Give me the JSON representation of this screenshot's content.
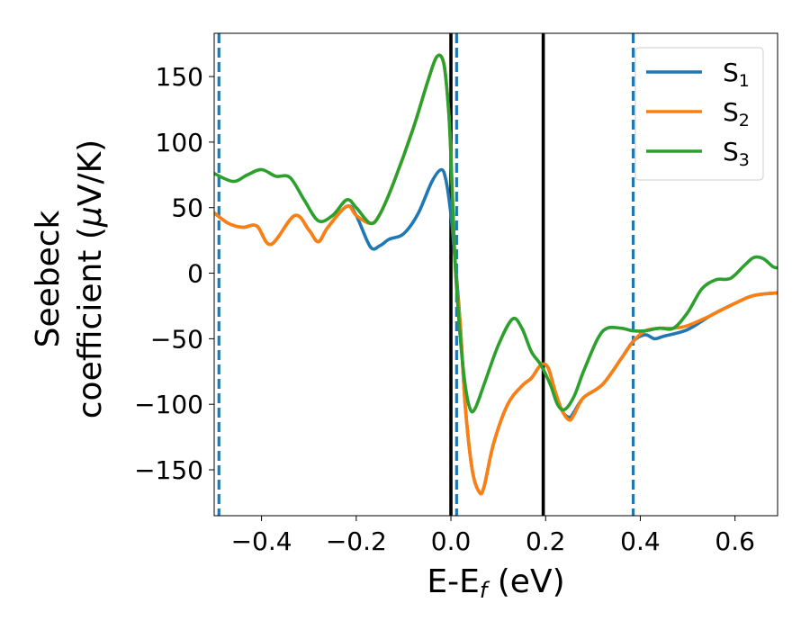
{
  "chart_data": {
    "type": "line",
    "title": "",
    "xlabel": "E-E",
    "xlabel_sub": "f",
    "xlabel_unit": " (eV)",
    "ylabel_line1": "Seebeck",
    "ylabel_line2_pre": "coefficient  (",
    "ylabel_mu": "μ",
    "ylabel_line2_post": "V/K)",
    "xlim": [
      -0.5,
      0.69
    ],
    "ylim": [
      -185,
      183
    ],
    "x_ticks": [
      -0.4,
      -0.2,
      0.0,
      0.2,
      0.4,
      0.6
    ],
    "x_tick_labels": [
      "−0.4",
      "−0.2",
      "0.0",
      "0.2",
      "0.4",
      "0.6"
    ],
    "y_ticks": [
      150,
      100,
      50,
      0,
      -50,
      -100,
      -150
    ],
    "y_tick_labels": [
      "150",
      "100",
      "50",
      "0",
      "−50",
      "−100",
      "−150"
    ],
    "grid": false,
    "legend_position": "top-right",
    "vertical_lines": [
      {
        "x": -0.49,
        "style": "dashed",
        "color": "#1f77b4"
      },
      {
        "x": 0.0,
        "style": "solid",
        "color": "#000000"
      },
      {
        "x": 0.012,
        "style": "dashed",
        "color": "#1f77b4"
      },
      {
        "x": 0.195,
        "style": "solid",
        "color": "#000000"
      },
      {
        "x": 0.385,
        "style": "dashed",
        "color": "#1f77b4"
      }
    ],
    "series": [
      {
        "name": "S",
        "sub": "1",
        "color": "#1f77b4",
        "points": [
          [
            -0.5,
            46
          ],
          [
            -0.47,
            38
          ],
          [
            -0.44,
            35
          ],
          [
            -0.41,
            36
          ],
          [
            -0.38,
            22
          ],
          [
            -0.33,
            44
          ],
          [
            -0.3,
            33
          ],
          [
            -0.28,
            24
          ],
          [
            -0.26,
            35
          ],
          [
            -0.22,
            51
          ],
          [
            -0.2,
            44
          ],
          [
            -0.17,
            20
          ],
          [
            -0.15,
            21
          ],
          [
            -0.13,
            26
          ],
          [
            -0.1,
            30
          ],
          [
            -0.07,
            45
          ],
          [
            -0.04,
            70
          ],
          [
            -0.02,
            79
          ],
          [
            -0.01,
            70
          ],
          [
            0.0,
            45
          ],
          [
            0.005,
            25
          ],
          [
            0.01,
            5
          ],
          [
            0.02,
            -40
          ],
          [
            0.03,
            -100
          ],
          [
            0.045,
            -150
          ],
          [
            0.06,
            -167
          ],
          [
            0.07,
            -163
          ],
          [
            0.09,
            -130
          ],
          [
            0.12,
            -100
          ],
          [
            0.15,
            -86
          ],
          [
            0.17,
            -80
          ],
          [
            0.19,
            -70
          ],
          [
            0.205,
            -72
          ],
          [
            0.22,
            -90
          ],
          [
            0.235,
            -105
          ],
          [
            0.25,
            -110
          ],
          [
            0.26,
            -106
          ],
          [
            0.28,
            -95
          ],
          [
            0.32,
            -85
          ],
          [
            0.36,
            -65
          ],
          [
            0.385,
            -52
          ],
          [
            0.41,
            -47
          ],
          [
            0.43,
            -50
          ],
          [
            0.45,
            -48
          ],
          [
            0.5,
            -43
          ],
          [
            0.55,
            -32
          ],
          [
            0.6,
            -23
          ],
          [
            0.64,
            -17
          ],
          [
            0.69,
            -15
          ]
        ]
      },
      {
        "name": "S",
        "sub": "2",
        "color": "#ff7f0e",
        "points": [
          [
            -0.5,
            46
          ],
          [
            -0.47,
            38
          ],
          [
            -0.44,
            35
          ],
          [
            -0.41,
            36
          ],
          [
            -0.38,
            22
          ],
          [
            -0.33,
            44
          ],
          [
            -0.3,
            33
          ],
          [
            -0.28,
            24
          ],
          [
            -0.26,
            35
          ],
          [
            -0.22,
            51
          ],
          [
            -0.2,
            44
          ],
          [
            -0.17,
            38
          ],
          [
            -0.15,
            45
          ],
          [
            -0.12,
            70
          ],
          [
            -0.08,
            110
          ],
          [
            -0.05,
            145
          ],
          [
            -0.03,
            165
          ],
          [
            -0.015,
            160
          ],
          [
            -0.005,
            125
          ],
          [
            0.0,
            90
          ],
          [
            0.005,
            40
          ],
          [
            0.01,
            0
          ],
          [
            0.02,
            -40
          ],
          [
            0.03,
            -100
          ],
          [
            0.045,
            -150
          ],
          [
            0.06,
            -167
          ],
          [
            0.07,
            -163
          ],
          [
            0.09,
            -130
          ],
          [
            0.12,
            -100
          ],
          [
            0.15,
            -86
          ],
          [
            0.17,
            -80
          ],
          [
            0.19,
            -70
          ],
          [
            0.205,
            -72
          ],
          [
            0.22,
            -90
          ],
          [
            0.235,
            -105
          ],
          [
            0.25,
            -112
          ],
          [
            0.26,
            -108
          ],
          [
            0.28,
            -95
          ],
          [
            0.32,
            -85
          ],
          [
            0.36,
            -65
          ],
          [
            0.385,
            -52
          ],
          [
            0.41,
            -44
          ],
          [
            0.44,
            -42
          ],
          [
            0.47,
            -42
          ],
          [
            0.5,
            -40
          ],
          [
            0.55,
            -32
          ],
          [
            0.6,
            -23
          ],
          [
            0.64,
            -17
          ],
          [
            0.69,
            -15
          ]
        ]
      },
      {
        "name": "S",
        "sub": "3",
        "color": "#2ca02c",
        "points": [
          [
            -0.5,
            76
          ],
          [
            -0.46,
            70
          ],
          [
            -0.43,
            75
          ],
          [
            -0.4,
            79
          ],
          [
            -0.37,
            74
          ],
          [
            -0.34,
            73
          ],
          [
            -0.31,
            56
          ],
          [
            -0.28,
            40
          ],
          [
            -0.25,
            44
          ],
          [
            -0.22,
            56
          ],
          [
            -0.2,
            50
          ],
          [
            -0.17,
            38
          ],
          [
            -0.15,
            45
          ],
          [
            -0.12,
            70
          ],
          [
            -0.08,
            110
          ],
          [
            -0.05,
            145
          ],
          [
            -0.03,
            165
          ],
          [
            -0.015,
            160
          ],
          [
            -0.005,
            125
          ],
          [
            0.0,
            90
          ],
          [
            0.005,
            40
          ],
          [
            0.01,
            0
          ],
          [
            0.02,
            -50
          ],
          [
            0.03,
            -85
          ],
          [
            0.04,
            -103
          ],
          [
            0.05,
            -104
          ],
          [
            0.07,
            -85
          ],
          [
            0.1,
            -55
          ],
          [
            0.13,
            -35
          ],
          [
            0.15,
            -42
          ],
          [
            0.17,
            -60
          ],
          [
            0.19,
            -70
          ],
          [
            0.21,
            -85
          ],
          [
            0.225,
            -100
          ],
          [
            0.24,
            -104
          ],
          [
            0.26,
            -94
          ],
          [
            0.28,
            -75
          ],
          [
            0.31,
            -50
          ],
          [
            0.33,
            -42
          ],
          [
            0.36,
            -42
          ],
          [
            0.385,
            -44
          ],
          [
            0.41,
            -44
          ],
          [
            0.44,
            -42
          ],
          [
            0.47,
            -42
          ],
          [
            0.5,
            -30
          ],
          [
            0.53,
            -12
          ],
          [
            0.56,
            -5
          ],
          [
            0.59,
            -4
          ],
          [
            0.62,
            6
          ],
          [
            0.64,
            12
          ],
          [
            0.66,
            11
          ],
          [
            0.68,
            5
          ],
          [
            0.69,
            4
          ]
        ]
      }
    ]
  }
}
